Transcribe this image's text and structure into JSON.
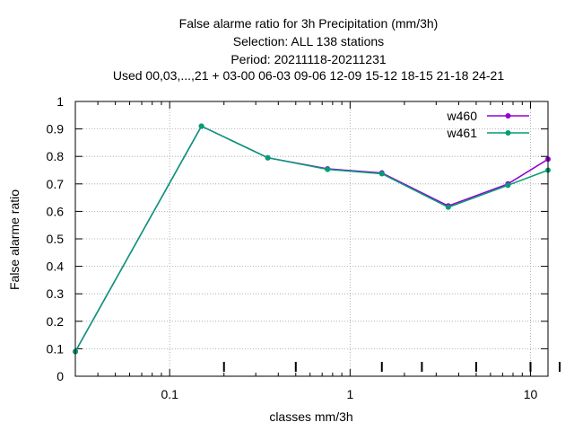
{
  "chart_data": {
    "type": "line",
    "title_lines": [
      "False alarme ratio  for 3h Precipitation (mm/3h)",
      "Selection: ALL    138 stations",
      "Period: 20211118-20211231",
      "Used  00,03,...,21  + 03-00 06-03 09-06 12-09 15-12 18-15 21-18 24-21"
    ],
    "xlabel": "classes mm/3h",
    "ylabel": "False alarme ratio",
    "x_scale": "log",
    "xlim": [
      0.03,
      12.5
    ],
    "ylim": [
      0,
      1
    ],
    "grid": true,
    "legend_position": "top-right",
    "x_ticks": [
      {
        "value": 0.1,
        "label": "0.1"
      },
      {
        "value": 1,
        "label": "1"
      },
      {
        "value": 10,
        "label": "10"
      }
    ],
    "y_ticks": [
      {
        "value": 0,
        "label": "0"
      },
      {
        "value": 0.1,
        "label": "0.1"
      },
      {
        "value": 0.2,
        "label": "0.2"
      },
      {
        "value": 0.3,
        "label": "0.3"
      },
      {
        "value": 0.4,
        "label": "0.4"
      },
      {
        "value": 0.5,
        "label": "0.5"
      },
      {
        "value": 0.6,
        "label": "0.6"
      },
      {
        "value": 0.7,
        "label": "0.7"
      },
      {
        "value": 0.8,
        "label": "0.8"
      },
      {
        "value": 0.9,
        "label": "0.9"
      },
      {
        "value": 1,
        "label": "1"
      }
    ],
    "class_thresholds": [
      0.2,
      0.5,
      1.5,
      2.5,
      5,
      10,
      20
    ],
    "series": [
      {
        "name": "w460",
        "color": "#9400d3",
        "x": [
          0.03,
          0.15,
          0.35,
          0.75,
          1.5,
          3.5,
          7.5,
          12.5
        ],
        "y": [
          0.09,
          0.91,
          0.795,
          0.755,
          0.74,
          0.62,
          0.7,
          0.79
        ]
      },
      {
        "name": "w461",
        "color": "#009e73",
        "x": [
          0.03,
          0.15,
          0.35,
          0.75,
          1.5,
          3.5,
          7.5,
          12.5
        ],
        "y": [
          0.09,
          0.91,
          0.795,
          0.753,
          0.737,
          0.615,
          0.695,
          0.75
        ]
      }
    ]
  }
}
